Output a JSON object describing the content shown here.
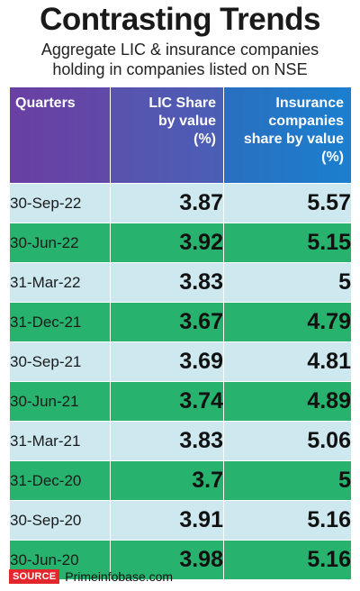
{
  "title": "Contrasting Trends",
  "subtitle_line1": "Aggregate LIC & insurance companies",
  "subtitle_line2": "holding in companies listed on NSE",
  "headers": {
    "quarters": "Quarters",
    "lic_line1": "LIC Share",
    "lic_line2": "by value",
    "lic_line3": "(%)",
    "ins_line1": "Insurance",
    "ins_line2": "companies",
    "ins_line3": "share by value",
    "ins_line4": "(%)"
  },
  "colors": {
    "header_purple": "#6a3fa3",
    "header_blue": "#1b7fcf",
    "row_light": "#cde9ef",
    "row_green": "#27b36e",
    "source_tag": "#e2262c"
  },
  "chart_data": {
    "type": "table",
    "title": "Contrasting Trends",
    "subtitle": "Aggregate LIC & insurance companies holding in companies listed on NSE",
    "columns": [
      "Quarters",
      "LIC Share by value (%)",
      "Insurance companies share by value (%)"
    ],
    "rows": [
      [
        "30-Sep-22",
        "3.87",
        "5.57"
      ],
      [
        "30-Jun-22",
        "3.92",
        "5.15"
      ],
      [
        "31-Mar-22",
        "3.83",
        "5"
      ],
      [
        "31-Dec-21",
        "3.67",
        "4.79"
      ],
      [
        "30-Sep-21",
        "3.69",
        "4.81"
      ],
      [
        "30-Jun-21",
        "3.74",
        "4.89"
      ],
      [
        "31-Mar-21",
        "3.83",
        "5.06"
      ],
      [
        "31-Dec-20",
        "3.7",
        "5"
      ],
      [
        "30-Sep-20",
        "3.91",
        "5.16"
      ],
      [
        "30-Jun-20",
        "3.98",
        "5.16"
      ]
    ]
  },
  "source": {
    "label": "SOURCE",
    "text": "Primeinfobase.com"
  }
}
